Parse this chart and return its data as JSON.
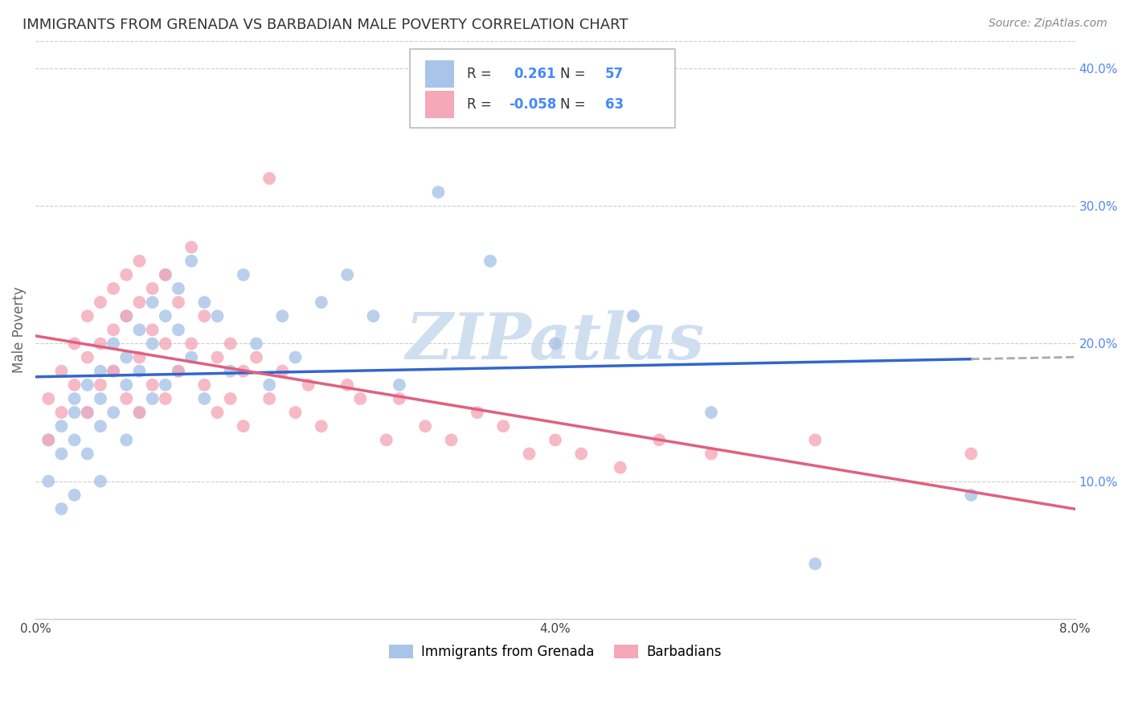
{
  "title": "IMMIGRANTS FROM GRENADA VS BARBADIAN MALE POVERTY CORRELATION CHART",
  "source": "Source: ZipAtlas.com",
  "ylabel": "Male Poverty",
  "xlim": [
    0.0,
    0.08
  ],
  "ylim": [
    0.0,
    0.42
  ],
  "ytick_right_labels": [
    "10.0%",
    "20.0%",
    "30.0%",
    "40.0%"
  ],
  "ytick_right_vals": [
    0.1,
    0.2,
    0.3,
    0.4
  ],
  "r_blue": 0.261,
  "n_blue": 57,
  "r_pink": -0.058,
  "n_pink": 63,
  "blue_color": "#a8c4e8",
  "pink_color": "#f4a8b8",
  "trend_blue_color": "#3366cc",
  "trend_pink_color": "#e06080",
  "dash_color": "#aaaaaa",
  "watermark_text": "ZIPatlas",
  "watermark_color": "#d0dff0",
  "legend_label_blue": "Immigrants from Grenada",
  "legend_label_pink": "Barbadians",
  "blue_x": [
    0.001,
    0.001,
    0.002,
    0.002,
    0.002,
    0.003,
    0.003,
    0.003,
    0.003,
    0.004,
    0.004,
    0.004,
    0.005,
    0.005,
    0.005,
    0.005,
    0.006,
    0.006,
    0.006,
    0.007,
    0.007,
    0.007,
    0.007,
    0.008,
    0.008,
    0.008,
    0.009,
    0.009,
    0.009,
    0.01,
    0.01,
    0.01,
    0.011,
    0.011,
    0.011,
    0.012,
    0.012,
    0.013,
    0.013,
    0.014,
    0.015,
    0.016,
    0.017,
    0.018,
    0.019,
    0.02,
    0.022,
    0.024,
    0.026,
    0.028,
    0.031,
    0.035,
    0.04,
    0.046,
    0.052,
    0.06,
    0.072
  ],
  "blue_y": [
    0.1,
    0.13,
    0.14,
    0.12,
    0.08,
    0.15,
    0.16,
    0.13,
    0.09,
    0.17,
    0.15,
    0.12,
    0.18,
    0.16,
    0.14,
    0.1,
    0.2,
    0.18,
    0.15,
    0.22,
    0.19,
    0.17,
    0.13,
    0.21,
    0.18,
    0.15,
    0.23,
    0.2,
    0.16,
    0.25,
    0.22,
    0.17,
    0.24,
    0.21,
    0.18,
    0.26,
    0.19,
    0.23,
    0.16,
    0.22,
    0.18,
    0.25,
    0.2,
    0.17,
    0.22,
    0.19,
    0.23,
    0.25,
    0.22,
    0.17,
    0.31,
    0.26,
    0.2,
    0.22,
    0.15,
    0.04,
    0.09
  ],
  "pink_x": [
    0.001,
    0.001,
    0.002,
    0.002,
    0.003,
    0.003,
    0.004,
    0.004,
    0.004,
    0.005,
    0.005,
    0.005,
    0.006,
    0.006,
    0.006,
    0.007,
    0.007,
    0.007,
    0.008,
    0.008,
    0.008,
    0.008,
    0.009,
    0.009,
    0.009,
    0.01,
    0.01,
    0.01,
    0.011,
    0.011,
    0.012,
    0.012,
    0.013,
    0.013,
    0.014,
    0.014,
    0.015,
    0.015,
    0.016,
    0.016,
    0.017,
    0.018,
    0.018,
    0.019,
    0.02,
    0.021,
    0.022,
    0.024,
    0.025,
    0.027,
    0.028,
    0.03,
    0.032,
    0.034,
    0.036,
    0.038,
    0.04,
    0.042,
    0.045,
    0.048,
    0.052,
    0.06,
    0.072
  ],
  "pink_y": [
    0.13,
    0.16,
    0.15,
    0.18,
    0.2,
    0.17,
    0.22,
    0.19,
    0.15,
    0.23,
    0.2,
    0.17,
    0.24,
    0.21,
    0.18,
    0.25,
    0.22,
    0.16,
    0.26,
    0.23,
    0.19,
    0.15,
    0.24,
    0.21,
    0.17,
    0.25,
    0.2,
    0.16,
    0.23,
    0.18,
    0.27,
    0.2,
    0.22,
    0.17,
    0.19,
    0.15,
    0.2,
    0.16,
    0.18,
    0.14,
    0.19,
    0.32,
    0.16,
    0.18,
    0.15,
    0.17,
    0.14,
    0.17,
    0.16,
    0.13,
    0.16,
    0.14,
    0.13,
    0.15,
    0.14,
    0.12,
    0.13,
    0.12,
    0.11,
    0.13,
    0.12,
    0.13,
    0.12
  ],
  "blue_line_x_start": 0.0,
  "blue_line_x_solid_end": 0.072,
  "blue_line_x_dash_end": 0.08,
  "pink_line_x_start": 0.0,
  "pink_line_x_end": 0.08
}
